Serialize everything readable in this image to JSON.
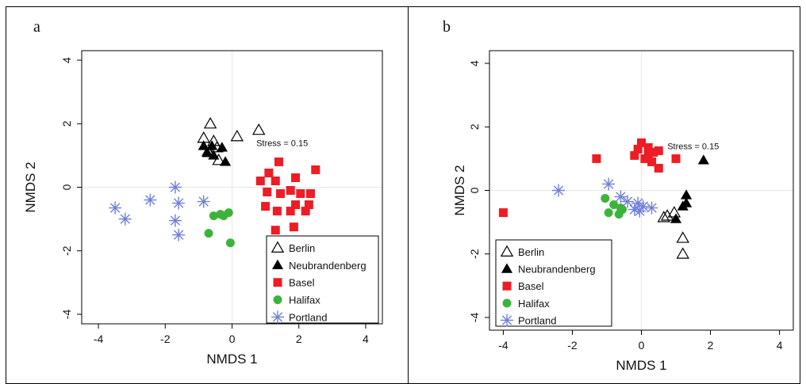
{
  "colors": {
    "Berlin": "#000000",
    "Neubrandenberg": "#000000",
    "Basel": "#ee1c24",
    "Halifax": "#3cb43c",
    "Portland": "#6f7fd6"
  },
  "markers": {
    "Berlin": "open-triangle",
    "Neubrandenberg": "filled-triangle",
    "Basel": "filled-square",
    "Halifax": "filled-circle",
    "Portland": "asterisk"
  },
  "chart_data": [
    {
      "panel_label": "a",
      "type": "scatter",
      "xlabel": "NMDS 1",
      "ylabel": "NMDS 2",
      "xlim": [
        -4.5,
        4.5
      ],
      "ylim": [
        -4.3,
        4.3
      ],
      "xticks": [
        -4,
        -2,
        0,
        2,
        4
      ],
      "yticks": [
        -4,
        -2,
        0,
        2,
        4
      ],
      "xtick_labels": [
        "-4",
        "-2",
        "0",
        "2",
        "4"
      ],
      "ytick_labels": [
        "-4",
        "-2",
        "0",
        "2",
        "4"
      ],
      "grid": "zero-lines",
      "annotation": "Stress = 0.15",
      "annotation_at": [
        1.5,
        1.4
      ],
      "legend": {
        "position": "bottom-right",
        "entries": [
          "Berlin",
          "Neubrandenberg",
          "Basel",
          "Halifax",
          "Portland"
        ]
      },
      "series": [
        {
          "name": "Berlin",
          "points": [
            [
              -0.65,
              2.0
            ],
            [
              -0.85,
              1.55
            ],
            [
              -0.55,
              1.45
            ],
            [
              0.15,
              1.6
            ],
            [
              0.8,
              1.8
            ],
            [
              -0.4,
              0.85
            ],
            [
              -0.7,
              1.1
            ],
            [
              -0.45,
              1.25
            ]
          ]
        },
        {
          "name": "Neubrandenberg",
          "points": [
            [
              -0.85,
              1.3
            ],
            [
              -0.75,
              1.1
            ],
            [
              -0.55,
              1.0
            ],
            [
              -0.3,
              1.25
            ],
            [
              -0.2,
              0.8
            ],
            [
              -0.6,
              1.3
            ]
          ]
        },
        {
          "name": "Basel",
          "points": [
            [
              1.4,
              0.8
            ],
            [
              1.1,
              0.45
            ],
            [
              2.5,
              0.55
            ],
            [
              1.9,
              0.3
            ],
            [
              1.3,
              0.2
            ],
            [
              0.85,
              0.2
            ],
            [
              1.05,
              -0.15
            ],
            [
              1.45,
              -0.2
            ],
            [
              1.75,
              -0.1
            ],
            [
              2.05,
              -0.2
            ],
            [
              2.35,
              -0.2
            ],
            [
              1.0,
              -0.6
            ],
            [
              1.35,
              -0.75
            ],
            [
              1.9,
              -0.55
            ],
            [
              2.3,
              -0.55
            ],
            [
              1.75,
              -0.75
            ],
            [
              2.2,
              -0.75
            ],
            [
              1.3,
              -1.35
            ],
            [
              1.85,
              -1.25
            ]
          ]
        },
        {
          "name": "Halifax",
          "points": [
            [
              -0.55,
              -0.9
            ],
            [
              -0.35,
              -0.85
            ],
            [
              -0.1,
              -0.8
            ],
            [
              -0.7,
              -1.45
            ],
            [
              -0.05,
              -1.75
            ],
            [
              -0.25,
              -0.9
            ]
          ]
        },
        {
          "name": "Portland",
          "points": [
            [
              -3.5,
              -0.65
            ],
            [
              -3.2,
              -1.0
            ],
            [
              -2.45,
              -0.4
            ],
            [
              -1.7,
              0.0
            ],
            [
              -1.6,
              -0.5
            ],
            [
              -1.7,
              -1.05
            ],
            [
              -1.6,
              -1.5
            ],
            [
              -0.85,
              -0.45
            ]
          ]
        }
      ]
    },
    {
      "panel_label": "b",
      "type": "scatter",
      "xlabel": "NMDS 1",
      "ylabel": "NMDS 2",
      "xlim": [
        -4.4,
        4.4
      ],
      "ylim": [
        -4.4,
        4.4
      ],
      "xticks": [
        -4,
        -2,
        0,
        2,
        4
      ],
      "yticks": [
        -4,
        -2,
        0,
        2,
        4
      ],
      "xtick_labels": [
        "-4",
        "-2",
        "0",
        "2",
        "4"
      ],
      "ytick_labels": [
        "-4",
        "-2",
        "0",
        "2",
        "4"
      ],
      "grid": "zero-lines",
      "annotation": "Stress = 0.15",
      "annotation_at": [
        1.5,
        1.4
      ],
      "legend": {
        "position": "bottom-left",
        "entries": [
          "Berlin",
          "Neubrandenberg",
          "Basel",
          "Halifax",
          "Portland"
        ]
      },
      "series": [
        {
          "name": "Berlin",
          "points": [
            [
              0.75,
              -0.8
            ],
            [
              0.95,
              -0.7
            ],
            [
              1.2,
              -1.5
            ],
            [
              1.2,
              -2.0
            ],
            [
              0.65,
              -0.85
            ]
          ]
        },
        {
          "name": "Neubrandenberg",
          "points": [
            [
              1.8,
              0.95
            ],
            [
              1.3,
              -0.15
            ],
            [
              1.3,
              -0.4
            ],
            [
              1.0,
              -0.9
            ],
            [
              1.2,
              -0.5
            ]
          ]
        },
        {
          "name": "Basel",
          "points": [
            [
              -4.0,
              -0.7
            ],
            [
              -1.3,
              1.0
            ],
            [
              -0.2,
              1.1
            ],
            [
              0.0,
              1.5
            ],
            [
              0.2,
              1.35
            ],
            [
              0.35,
              1.2
            ],
            [
              0.5,
              1.25
            ],
            [
              0.1,
              1.0
            ],
            [
              0.3,
              0.9
            ],
            [
              0.5,
              0.7
            ],
            [
              -0.1,
              1.3
            ],
            [
              1.0,
              1.0
            ],
            [
              0.2,
              1.1
            ]
          ]
        },
        {
          "name": "Halifax",
          "points": [
            [
              -1.05,
              -0.25
            ],
            [
              -0.8,
              -0.45
            ],
            [
              -0.95,
              -0.7
            ],
            [
              -0.6,
              -0.55
            ],
            [
              -0.65,
              -0.75
            ],
            [
              -0.55,
              -0.6
            ]
          ]
        },
        {
          "name": "Portland",
          "points": [
            [
              -2.4,
              0.0
            ],
            [
              -0.95,
              0.2
            ],
            [
              -0.6,
              -0.2
            ],
            [
              -0.4,
              -0.35
            ],
            [
              -0.1,
              -0.4
            ],
            [
              0.05,
              -0.5
            ],
            [
              0.3,
              -0.55
            ],
            [
              -0.2,
              -0.6
            ],
            [
              -0.05,
              -0.65
            ]
          ]
        }
      ]
    }
  ]
}
